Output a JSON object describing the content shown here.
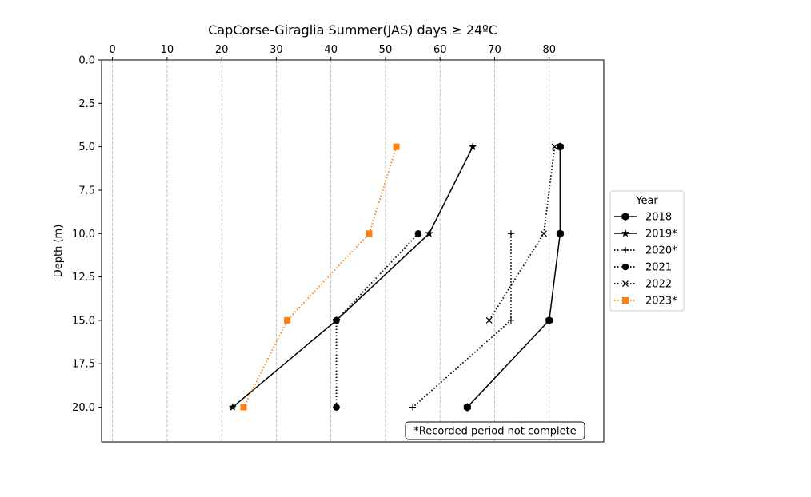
{
  "chart_data": {
    "type": "line",
    "title": "CapCorse-Giraglia Summer(JAS) days ≥ 24ºC",
    "xlabel": "",
    "ylabel": "Depth (m)",
    "xlim": [
      -2,
      90
    ],
    "ylim": [
      22,
      0
    ],
    "y_inverted": true,
    "x_axis_position": "top",
    "x_ticks": [
      0,
      10,
      20,
      30,
      40,
      50,
      60,
      70,
      80
    ],
    "y_ticks": [
      0.0,
      2.5,
      5.0,
      7.5,
      10.0,
      12.5,
      15.0,
      17.5,
      20.0
    ],
    "x_tick_labels": [
      "0",
      "10",
      "20",
      "30",
      "40",
      "50",
      "60",
      "70",
      "80"
    ],
    "y_tick_labels": [
      "0.0",
      "2.5",
      "5.0",
      "7.5",
      "10.0",
      "12.5",
      "15.0",
      "17.5",
      "20.0"
    ],
    "grid": "vertical dashed",
    "legend_title": "Year",
    "legend_position": "right",
    "annotation": "*Recorded period not complete",
    "series": [
      {
        "name": "2018",
        "color": "#000000",
        "linestyle": "solid",
        "marker": "hexagon",
        "points": [
          {
            "x": 82,
            "y": 5
          },
          {
            "x": 82,
            "y": 10
          },
          {
            "x": 80,
            "y": 15
          },
          {
            "x": 65,
            "y": 20
          }
        ]
      },
      {
        "name": "2019*",
        "color": "#000000",
        "linestyle": "solid",
        "marker": "star",
        "points": [
          {
            "x": 66,
            "y": 5
          },
          {
            "x": 58,
            "y": 10
          },
          {
            "x": 41,
            "y": 15
          },
          {
            "x": 22,
            "y": 20
          }
        ]
      },
      {
        "name": "2020*",
        "color": "#000000",
        "linestyle": "dotted",
        "marker": "plus",
        "points": [
          {
            "x": 73,
            "y": 10
          },
          {
            "x": 73,
            "y": 15
          },
          {
            "x": 55,
            "y": 20
          }
        ]
      },
      {
        "name": "2021",
        "color": "#000000",
        "linestyle": "dotted",
        "marker": "circle",
        "points": [
          {
            "x": 56,
            "y": 10
          },
          {
            "x": 41,
            "y": 15
          },
          {
            "x": 41,
            "y": 20
          }
        ]
      },
      {
        "name": "2022",
        "color": "#000000",
        "linestyle": "dotted",
        "marker": "x",
        "points": [
          {
            "x": 81,
            "y": 5
          },
          {
            "x": 79,
            "y": 10
          },
          {
            "x": 69,
            "y": 15
          }
        ]
      },
      {
        "name": "2023*",
        "color": "#ff7f0e",
        "linestyle": "dotted",
        "marker": "square",
        "points": [
          {
            "x": 52,
            "y": 5
          },
          {
            "x": 47,
            "y": 10
          },
          {
            "x": 32,
            "y": 15
          },
          {
            "x": 24,
            "y": 20
          }
        ]
      }
    ]
  }
}
